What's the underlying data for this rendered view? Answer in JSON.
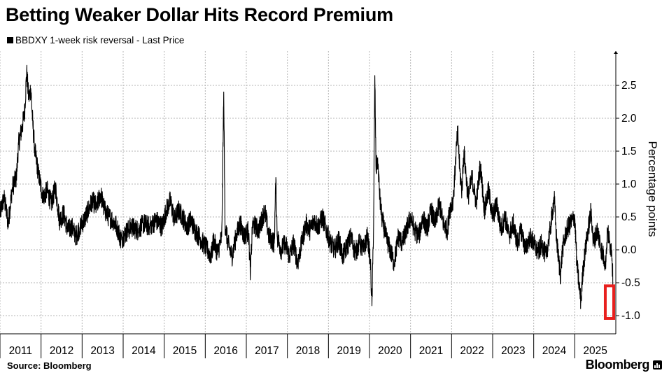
{
  "chart_data": {
    "type": "line",
    "title": "Betting Weaker Dollar Hits Record Premium",
    "series": [
      {
        "name": "BBDXY 1-week risk reversal - Last Price",
        "points": [
          [
            2011.0,
            0.55
          ],
          [
            2011.1,
            0.8
          ],
          [
            2011.2,
            0.4
          ],
          [
            2011.3,
            0.95
          ],
          [
            2011.4,
            1.1
          ],
          [
            2011.45,
            1.6
          ],
          [
            2011.55,
            1.9
          ],
          [
            2011.6,
            2.1
          ],
          [
            2011.65,
            2.7
          ],
          [
            2011.7,
            2.3
          ],
          [
            2011.75,
            2.45
          ],
          [
            2011.8,
            1.9
          ],
          [
            2011.85,
            1.5
          ],
          [
            2011.95,
            1.1
          ],
          [
            2012.05,
            0.8
          ],
          [
            2012.15,
            0.9
          ],
          [
            2012.25,
            0.7
          ],
          [
            2012.35,
            0.95
          ],
          [
            2012.45,
            0.45
          ],
          [
            2012.55,
            0.55
          ],
          [
            2012.65,
            0.3
          ],
          [
            2012.75,
            0.35
          ],
          [
            2012.85,
            0.2
          ],
          [
            2012.95,
            0.35
          ],
          [
            2013.05,
            0.45
          ],
          [
            2013.15,
            0.6
          ],
          [
            2013.25,
            0.75
          ],
          [
            2013.35,
            0.65
          ],
          [
            2013.45,
            0.85
          ],
          [
            2013.55,
            0.6
          ],
          [
            2013.65,
            0.5
          ],
          [
            2013.75,
            0.45
          ],
          [
            2013.85,
            0.35
          ],
          [
            2013.95,
            0.15
          ],
          [
            2014.05,
            0.25
          ],
          [
            2014.2,
            0.35
          ],
          [
            2014.35,
            0.3
          ],
          [
            2014.5,
            0.4
          ],
          [
            2014.65,
            0.35
          ],
          [
            2014.8,
            0.45
          ],
          [
            2014.95,
            0.35
          ],
          [
            2015.05,
            0.6
          ],
          [
            2015.15,
            0.75
          ],
          [
            2015.25,
            0.45
          ],
          [
            2015.35,
            0.6
          ],
          [
            2015.45,
            0.5
          ],
          [
            2015.55,
            0.35
          ],
          [
            2015.65,
            0.45
          ],
          [
            2015.75,
            0.3
          ],
          [
            2015.85,
            0.2
          ],
          [
            2015.95,
            0.1
          ],
          [
            2016.05,
            0.0
          ],
          [
            2016.15,
            -0.1
          ],
          [
            2016.2,
            0.15
          ],
          [
            2016.3,
            -0.05
          ],
          [
            2016.4,
            0.2
          ],
          [
            2016.45,
            2.4
          ],
          [
            2016.48,
            0.4
          ],
          [
            2016.55,
            0.1
          ],
          [
            2016.65,
            -0.1
          ],
          [
            2016.75,
            0.2
          ],
          [
            2016.85,
            0.4
          ],
          [
            2016.95,
            0.2
          ],
          [
            2017.05,
            0.3
          ],
          [
            2017.1,
            -0.35
          ],
          [
            2017.15,
            0.4
          ],
          [
            2017.3,
            0.3
          ],
          [
            2017.45,
            0.6
          ],
          [
            2017.55,
            0.2
          ],
          [
            2017.68,
            0.1
          ],
          [
            2017.72,
            1.1
          ],
          [
            2017.75,
            0.2
          ],
          [
            2017.85,
            0.0
          ],
          [
            2017.95,
            0.1
          ],
          [
            2018.05,
            -0.1
          ],
          [
            2018.15,
            0.1
          ],
          [
            2018.25,
            -0.2
          ],
          [
            2018.35,
            0.1
          ],
          [
            2018.45,
            0.4
          ],
          [
            2018.55,
            0.3
          ],
          [
            2018.65,
            0.45
          ],
          [
            2018.75,
            0.35
          ],
          [
            2018.85,
            0.5
          ],
          [
            2018.95,
            0.3
          ],
          [
            2019.05,
            0.1
          ],
          [
            2019.15,
            0.0
          ],
          [
            2019.25,
            0.15
          ],
          [
            2019.35,
            -0.1
          ],
          [
            2019.45,
            0.05
          ],
          [
            2019.55,
            0.2
          ],
          [
            2019.65,
            -0.05
          ],
          [
            2019.75,
            0.1
          ],
          [
            2019.85,
            0.0
          ],
          [
            2019.95,
            0.2
          ],
          [
            2020.02,
            -0.15
          ],
          [
            2020.06,
            -0.85
          ],
          [
            2020.1,
            0.4
          ],
          [
            2020.13,
            2.65
          ],
          [
            2020.16,
            1.2
          ],
          [
            2020.2,
            1.4
          ],
          [
            2020.25,
            0.8
          ],
          [
            2020.3,
            0.5
          ],
          [
            2020.4,
            0.2
          ],
          [
            2020.5,
            0.0
          ],
          [
            2020.6,
            -0.2
          ],
          [
            2020.7,
            0.2
          ],
          [
            2020.8,
            0.1
          ],
          [
            2020.9,
            0.3
          ],
          [
            2021.0,
            0.5
          ],
          [
            2021.1,
            0.3
          ],
          [
            2021.2,
            0.2
          ],
          [
            2021.3,
            0.5
          ],
          [
            2021.4,
            0.3
          ],
          [
            2021.5,
            0.6
          ],
          [
            2021.6,
            0.4
          ],
          [
            2021.7,
            0.7
          ],
          [
            2021.8,
            0.4
          ],
          [
            2021.9,
            0.3
          ],
          [
            2021.95,
            0.6
          ],
          [
            2022.05,
            0.8
          ],
          [
            2022.1,
            1.4
          ],
          [
            2022.15,
            1.8
          ],
          [
            2022.2,
            1.2
          ],
          [
            2022.25,
            0.9
          ],
          [
            2022.3,
            1.5
          ],
          [
            2022.4,
            0.8
          ],
          [
            2022.5,
            1.1
          ],
          [
            2022.6,
            0.7
          ],
          [
            2022.7,
            1.3
          ],
          [
            2022.8,
            0.6
          ],
          [
            2022.9,
            0.9
          ],
          [
            2023.0,
            0.5
          ],
          [
            2023.1,
            0.7
          ],
          [
            2023.2,
            0.3
          ],
          [
            2023.3,
            0.5
          ],
          [
            2023.4,
            0.2
          ],
          [
            2023.5,
            0.4
          ],
          [
            2023.6,
            0.1
          ],
          [
            2023.7,
            0.3
          ],
          [
            2023.8,
            0.0
          ],
          [
            2023.9,
            0.2
          ],
          [
            2024.0,
            0.1
          ],
          [
            2024.1,
            -0.05
          ],
          [
            2024.2,
            0.1
          ],
          [
            2024.3,
            -0.1
          ],
          [
            2024.4,
            0.3
          ],
          [
            2024.5,
            0.8
          ],
          [
            2024.55,
            0.2
          ],
          [
            2024.6,
            -0.1
          ],
          [
            2024.65,
            -0.4
          ],
          [
            2024.7,
            0.0
          ],
          [
            2024.8,
            0.3
          ],
          [
            2024.9,
            0.4
          ],
          [
            2025.0,
            0.5
          ],
          [
            2025.05,
            -0.2
          ],
          [
            2025.1,
            -0.5
          ],
          [
            2025.15,
            -0.8
          ],
          [
            2025.2,
            -0.3
          ],
          [
            2025.3,
            0.2
          ],
          [
            2025.4,
            0.6
          ],
          [
            2025.45,
            0.1
          ],
          [
            2025.55,
            0.3
          ],
          [
            2025.65,
            0.0
          ],
          [
            2025.75,
            -0.2
          ],
          [
            2025.8,
            0.3
          ],
          [
            2025.85,
            0.1
          ],
          [
            2025.9,
            0.0
          ],
          [
            2025.95,
            -0.8
          ]
        ]
      }
    ],
    "x_ticks": [
      "2011",
      "2012",
      "2013",
      "2014",
      "2015",
      "2016",
      "2017",
      "2018",
      "2019",
      "2020",
      "2021",
      "2022",
      "2023",
      "2024",
      "2025"
    ],
    "y_ticks": [
      "2.5",
      "2.0",
      "1.5",
      "1.0",
      "0.5",
      "0.0",
      "-0.5",
      "-1.0"
    ],
    "xlim": [
      2011,
      2026
    ],
    "ylim": [
      -1.2,
      3.0
    ],
    "ylabel": "Percentage points",
    "highlight": {
      "x_from": 2025.88,
      "x_to": 2026.0,
      "y_from": -1.0,
      "y_to": -0.6,
      "color": "#e8201e"
    },
    "line_color": "#000000",
    "grid": true
  },
  "legend_label": "BBDXY 1-week risk reversal - Last Price",
  "footer": {
    "source": "Source: Bloomberg",
    "brand": "Bloomberg"
  }
}
